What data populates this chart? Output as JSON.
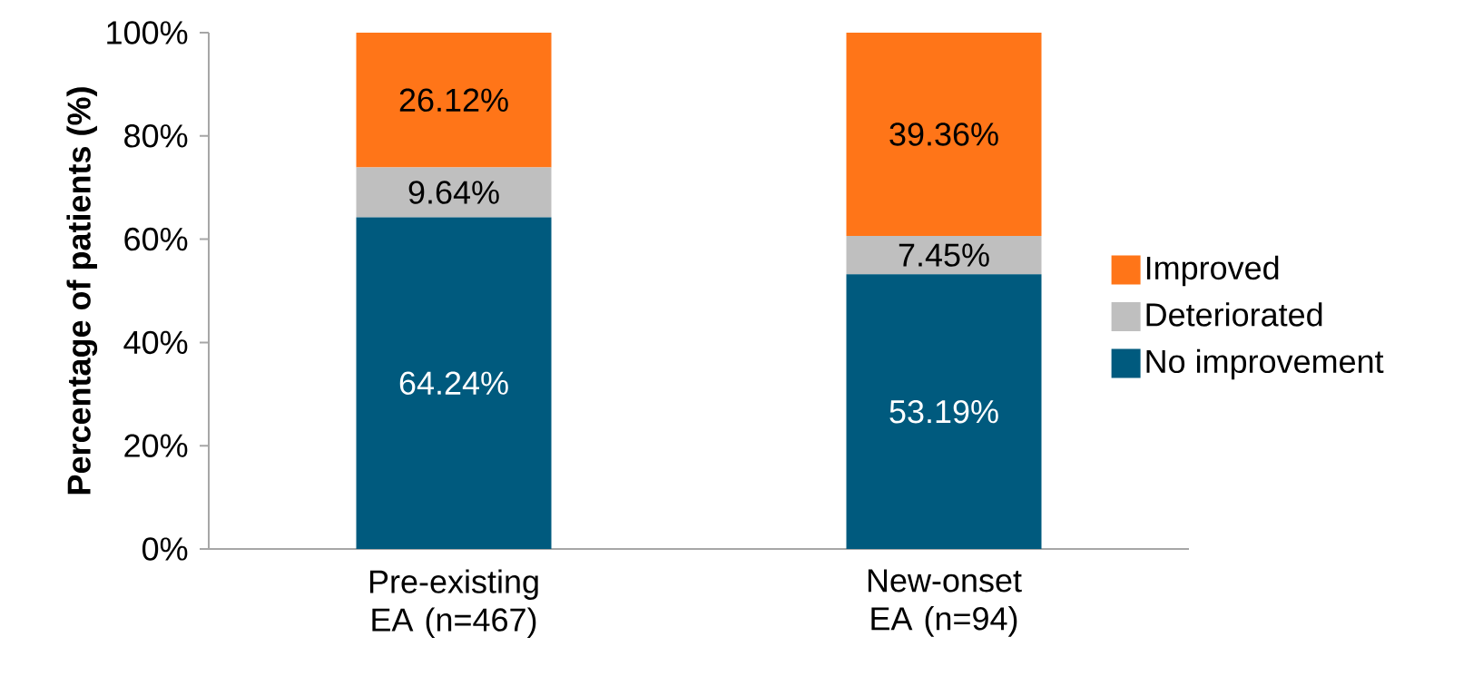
{
  "chart_data": {
    "type": "bar",
    "stacked": true,
    "ylabel": "Percentage of patients (%)",
    "categories": [
      "Pre-existing EA (n=467)",
      "New-onset EA (n=94)"
    ],
    "series": [
      {
        "name": "No improvement",
        "color": "#005a7e",
        "values": [
          64.24,
          53.19
        ],
        "value_labels": [
          "64.24%",
          "53.19%"
        ]
      },
      {
        "name": "Deteriorated",
        "color": "#bfbfbf",
        "values": [
          9.64,
          7.45
        ],
        "value_labels": [
          "9.64%",
          "7.45%"
        ]
      },
      {
        "name": "Improved",
        "color": "#ff7518",
        "values": [
          26.12,
          39.36
        ],
        "value_labels": [
          "26.12%",
          "39.36%"
        ]
      }
    ],
    "ylim": [
      0,
      100
    ],
    "yticks": [
      {
        "value": 0,
        "label": "0%"
      },
      {
        "value": 20,
        "label": "20%"
      },
      {
        "value": 40,
        "label": "40%"
      },
      {
        "value": 60,
        "label": "60%"
      },
      {
        "value": 80,
        "label": "80%"
      },
      {
        "value": 100,
        "label": "100%"
      }
    ],
    "legend": "right",
    "grid": false
  }
}
